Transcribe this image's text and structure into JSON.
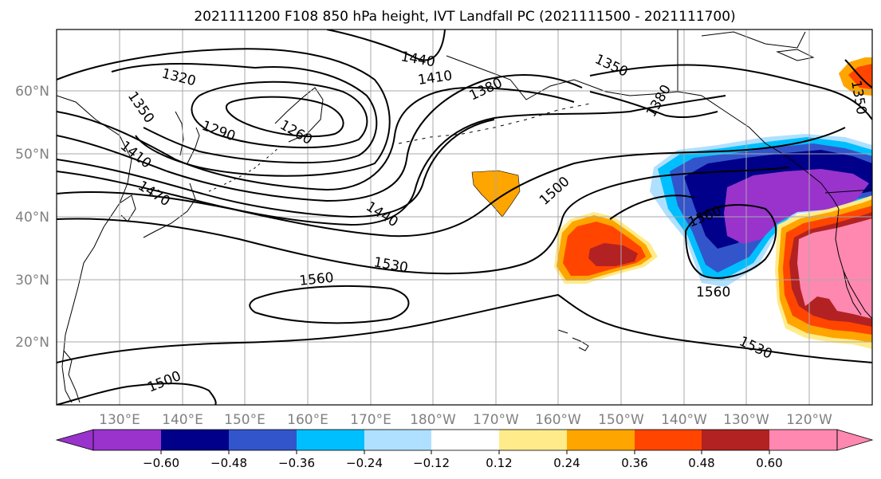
{
  "figure": {
    "title": "2021111200 F108 850 hPa height, IVT Landfall PC (2021111500 - 2021111700)"
  },
  "axes": {
    "lat_ticks": [
      "20°N",
      "30°N",
      "40°N",
      "50°N",
      "60°N"
    ],
    "lon_ticks": [
      "130°E",
      "140°E",
      "150°E",
      "160°E",
      "170°E",
      "180°W",
      "170°W",
      "160°W",
      "150°W",
      "140°W",
      "130°W",
      "120°W"
    ],
    "grid": true
  },
  "contours": {
    "labels": [
      "1320",
      "1350",
      "1290",
      "1260",
      "1410",
      "1470",
      "1440",
      "1410",
      "1380",
      "1350",
      "1380",
      "1500",
      "1440",
      "1530",
      "1560",
      "1560",
      "1560",
      "1500",
      "1530",
      "1350"
    ]
  },
  "colorbar": {
    "ticks": [
      "−0.60",
      "−0.48",
      "−0.36",
      "−0.24",
      "−0.12",
      "0.12",
      "0.24",
      "0.36",
      "0.48",
      "0.60"
    ],
    "colors": [
      "#9933cc",
      "#00008b",
      "#3355cc",
      "#00bfff",
      "#b0e0ff",
      "#ffffff",
      "#ffeb8a",
      "#ffa500",
      "#ff4500",
      "#b22222",
      "#ff88b0"
    ],
    "extend": "both"
  },
  "fill_colors": {
    "purple": "#9933cc",
    "navy": "#00008b",
    "blue": "#3355cc",
    "sky": "#00bfff",
    "lightblue": "#b0e0ff",
    "yellow": "#ffeb8a",
    "orange": "#ffa500",
    "red": "#ff4500",
    "darkred": "#b22222",
    "pink": "#ff88b0"
  }
}
